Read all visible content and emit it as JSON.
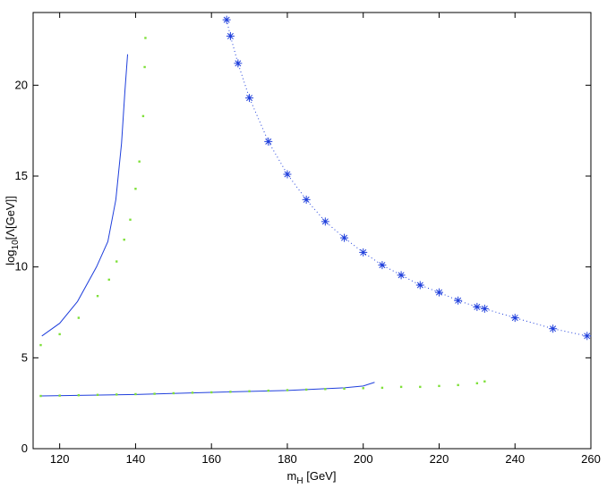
{
  "chart_data": {
    "type": "line",
    "xlabel": {
      "base": "m",
      "sub": "H",
      "rest": " [GeV]"
    },
    "ylabel": {
      "base": "log",
      "sub": "10",
      "rest": "[Λ[GeV]]"
    },
    "xlim": [
      113,
      260
    ],
    "ylim": [
      0,
      24
    ],
    "xticks": [
      120,
      140,
      160,
      180,
      200,
      220,
      240,
      260
    ],
    "yticks": [
      0,
      5,
      10,
      15,
      20
    ],
    "series": [
      {
        "color": "#1f3fdc",
        "line": "solid",
        "marker": "none",
        "x": [
          115.3,
          120,
          124.7,
          129.7,
          132.7,
          134.8,
          136.3,
          137.2,
          137.9
        ],
        "values": [
          6.2,
          6.9,
          8.1,
          10,
          11.4,
          13.7,
          16.8,
          19.7,
          21.7
        ]
      },
      {
        "color": "#7fe03a",
        "line": "none",
        "marker": "dot",
        "x": [
          115,
          120,
          125,
          130,
          133,
          135,
          137,
          138.6,
          140,
          141,
          142,
          142.4,
          142.6
        ],
        "values": [
          5.7,
          6.3,
          7.2,
          8.4,
          9.3,
          10.3,
          11.5,
          12.6,
          14.3,
          15.8,
          18.3,
          21.0,
          22.6
        ]
      },
      {
        "color": "#1f3fdc",
        "line": "dotted",
        "marker": "star",
        "x": [
          164,
          165,
          167,
          170,
          175,
          180,
          185,
          190,
          195,
          200,
          205,
          210,
          215,
          220,
          225,
          230,
          232,
          240,
          250,
          259
        ],
        "values": [
          23.6,
          22.7,
          21.2,
          19.3,
          16.9,
          15.1,
          13.7,
          12.5,
          11.6,
          10.8,
          10.1,
          9.55,
          9.0,
          8.6,
          8.15,
          7.8,
          7.7,
          7.2,
          6.6,
          6.2
        ]
      },
      {
        "color": "#1f3fdc",
        "line": "solid",
        "marker": "none",
        "x": [
          115,
          140,
          160,
          180,
          195,
          200,
          203
        ],
        "values": [
          2.9,
          2.98,
          3.1,
          3.2,
          3.35,
          3.45,
          3.65
        ]
      },
      {
        "color": "#7fe03a",
        "line": "none",
        "marker": "dot",
        "x": [
          115,
          120,
          125,
          130,
          135,
          140,
          145,
          150,
          155,
          160,
          165,
          170,
          175,
          180,
          185,
          190,
          195,
          200,
          205,
          210,
          215,
          220,
          225,
          230,
          232
        ],
        "values": [
          2.9,
          2.92,
          2.94,
          2.96,
          2.98,
          3.0,
          3.02,
          3.05,
          3.08,
          3.1,
          3.13,
          3.16,
          3.19,
          3.22,
          3.25,
          3.28,
          3.3,
          3.33,
          3.35,
          3.4,
          3.4,
          3.45,
          3.5,
          3.6,
          3.7
        ]
      }
    ]
  }
}
